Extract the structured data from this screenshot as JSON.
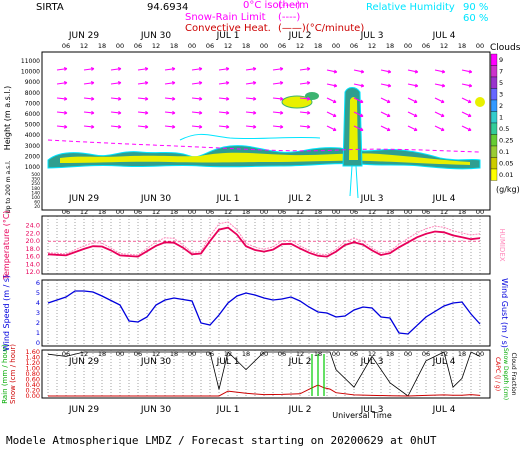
{
  "header": {
    "site": "SIRTA",
    "coords": "94.6934",
    "legend_left": [
      {
        "label": "0°C isotherm",
        "style": "(----)",
        "color": "#ff00ff"
      },
      {
        "label": "Snow-Rain Limit",
        "style": "(----)",
        "color": "#ff00ff"
      },
      {
        "label": "Convective Heat.",
        "style": "(——)(°C/minute)",
        "color": "#cc0000"
      }
    ],
    "legend_right": {
      "label": "Relative Humidity",
      "values": [
        "90 %",
        "60 %"
      ],
      "color": "#00e5ff"
    }
  },
  "colors": {
    "temperature": "#e8005a",
    "humidex": "#ff88bb",
    "wind": "#0000dd",
    "rain": "#cc0000",
    "snow": "#00cc00",
    "cape": "#dd0000",
    "cloud_fraction": "#000000",
    "rh": "#00e5ff",
    "wind_arrow": "#ff00ff",
    "grid": "#444444"
  },
  "chart_data": {
    "type": "meteogram",
    "x": {
      "start": "2020-06-29 00UT",
      "days": [
        "JUN 29",
        "JUN 30",
        "JUL 1",
        "JUL 2",
        "JUL 3",
        "JUL 4"
      ],
      "hour_ticks": [
        "06",
        "12",
        "18",
        "00"
      ],
      "xlabel": "Universal Time"
    },
    "panels": [
      {
        "id": "clouds",
        "ylabel": "Height (m a.s.l.)",
        "ylabel_low": "Up to 200 m a.s.l.",
        "yticks": [
          "11000",
          "10000",
          "9000",
          "8000",
          "7000",
          "6000",
          "5000",
          "4000",
          "3000",
          "2000",
          "1000",
          "500",
          "400",
          "350",
          "300",
          "250",
          "200",
          "180",
          "160",
          "140",
          "120",
          "100",
          "80",
          "60",
          "40",
          "20",
          "10"
        ],
        "colorbar_title": "Clouds",
        "colorbar_unit": "(g/kg)",
        "colorbar_labels": [
          "9",
          "7",
          "5",
          "3",
          "2",
          "1",
          "0.5",
          "0.25",
          "0.1",
          "0.05",
          "0.01"
        ]
      },
      {
        "id": "temperature",
        "ylabel": "Temperature (°C)",
        "ylabel_right": "HUMIDEX",
        "ylim": [
          12,
          26
        ],
        "yticks": [
          "24.0",
          "22.0",
          "20.0",
          "18.0",
          "16.0",
          "14.0",
          "12.0"
        ],
        "time_hours": [
          0,
          6,
          12,
          15,
          18,
          21,
          24,
          30,
          36,
          39,
          42,
          45,
          48,
          51,
          54,
          57,
          60,
          63,
          66,
          69,
          72,
          75,
          78,
          81,
          84,
          87,
          90,
          93,
          96,
          99,
          102,
          105,
          108,
          111,
          114,
          117,
          120,
          123,
          126,
          129,
          132,
          135,
          138,
          141,
          144
        ],
        "temperature": [
          16.6,
          16.3,
          18.0,
          18.7,
          18.6,
          17.6,
          16.3,
          16.0,
          18.8,
          19.7,
          19.6,
          18.3,
          16.6,
          16.8,
          20.0,
          23.0,
          23.5,
          21.7,
          18.7,
          17.7,
          17.3,
          17.8,
          19.2,
          19.3,
          18.1,
          17.0,
          16.2,
          16.0,
          17.3,
          19.0,
          19.7,
          19.1,
          17.6,
          16.4,
          16.9,
          18.4,
          19.7,
          21.0,
          21.9,
          22.5,
          22.3,
          21.5,
          21.0,
          20.5,
          20.8
        ],
        "humidex": [
          17.0,
          16.7,
          18.8,
          19.6,
          19.5,
          18.2,
          16.8,
          16.4,
          19.8,
          20.9,
          20.7,
          19.0,
          17.1,
          17.3,
          21.3,
          24.5,
          25.0,
          23.0,
          19.5,
          18.4,
          17.9,
          18.5,
          20.1,
          20.2,
          18.8,
          17.6,
          16.7,
          16.5,
          17.9,
          19.9,
          20.7,
          20.0,
          18.2,
          16.9,
          17.4,
          19.2,
          20.7,
          22.2,
          23.2,
          23.9,
          23.6,
          22.7,
          22.1,
          21.6,
          21.9
        ]
      },
      {
        "id": "wind",
        "ylabel": "Wind Speed (m / s)",
        "ylabel_right": "Wind Gust (m / s)",
        "ylim": [
          0,
          6
        ],
        "yticks": [
          "6",
          "5",
          "4",
          "3",
          "2",
          "1",
          "0"
        ],
        "time_hours": [
          0,
          6,
          9,
          12,
          15,
          18,
          24,
          27,
          30,
          33,
          36,
          39,
          42,
          48,
          51,
          54,
          57,
          60,
          63,
          66,
          69,
          72,
          75,
          78,
          81,
          84,
          87,
          90,
          93,
          96,
          99,
          102,
          105,
          108,
          111,
          114,
          117,
          120,
          126,
          132,
          135,
          138,
          141,
          144
        ],
        "wind_speed": [
          4.0,
          4.6,
          5.2,
          5.2,
          5.1,
          4.7,
          3.8,
          2.2,
          2.1,
          2.6,
          3.8,
          4.3,
          4.5,
          4.2,
          2.0,
          1.8,
          2.8,
          4.0,
          4.7,
          5.0,
          4.8,
          4.5,
          4.3,
          4.4,
          4.6,
          4.2,
          3.6,
          3.1,
          3.0,
          2.6,
          2.7,
          3.3,
          3.6,
          3.5,
          2.6,
          2.5,
          1.0,
          0.9,
          2.6,
          3.7,
          4.0,
          4.1,
          2.9,
          1.9
        ]
      },
      {
        "id": "precip",
        "ylabel": "Rain (mm / hour)",
        "ylabel2": "Snow (cm / hour)",
        "ylabel_right": "CAPC (J / g)",
        "ylabel_right2": "Snow Depth (cm)",
        "ylabel_right3": "Cloud Fraction",
        "ylim": [
          0,
          1.6
        ],
        "yticks": [
          "1.60",
          "1.40",
          "1.20",
          "1.00",
          "0.80",
          "0.60",
          "0.40",
          "0.20",
          "0.00"
        ],
        "time_hours": [
          0,
          6,
          12,
          18,
          24,
          30,
          36,
          42,
          48,
          54,
          57,
          60,
          66,
          72,
          78,
          84,
          88,
          90,
          92,
          94,
          96,
          102,
          108,
          114,
          120,
          126,
          132,
          135,
          138,
          141,
          144
        ],
        "cloud_fraction": [
          0.95,
          0.9,
          1.0,
          1.0,
          1.0,
          1.0,
          1.0,
          1.0,
          1.0,
          1.0,
          0.15,
          1.0,
          0.6,
          1.0,
          1.0,
          1.0,
          1.0,
          1.0,
          1.0,
          1.0,
          0.6,
          0.2,
          0.9,
          0.3,
          0.0,
          0.8,
          1.0,
          0.2,
          0.4,
          1.0,
          0.9
        ],
        "rain": [
          0,
          0,
          0,
          0,
          0,
          0,
          0,
          0,
          0,
          0,
          0,
          0.18,
          0.1,
          0.05,
          0.06,
          0.08,
          0.3,
          0.4,
          0.3,
          0.25,
          0.12,
          0.04,
          0.02,
          0.01,
          0,
          0.02,
          0.04,
          0.03,
          0.03,
          0.05,
          0.02
        ],
        "snow_bars_hours": [
          88,
          90,
          92
        ]
      }
    ],
    "footer": "Modele Atmospherique LMDZ / Forecast starting on 20200629 at 0hUT"
  }
}
